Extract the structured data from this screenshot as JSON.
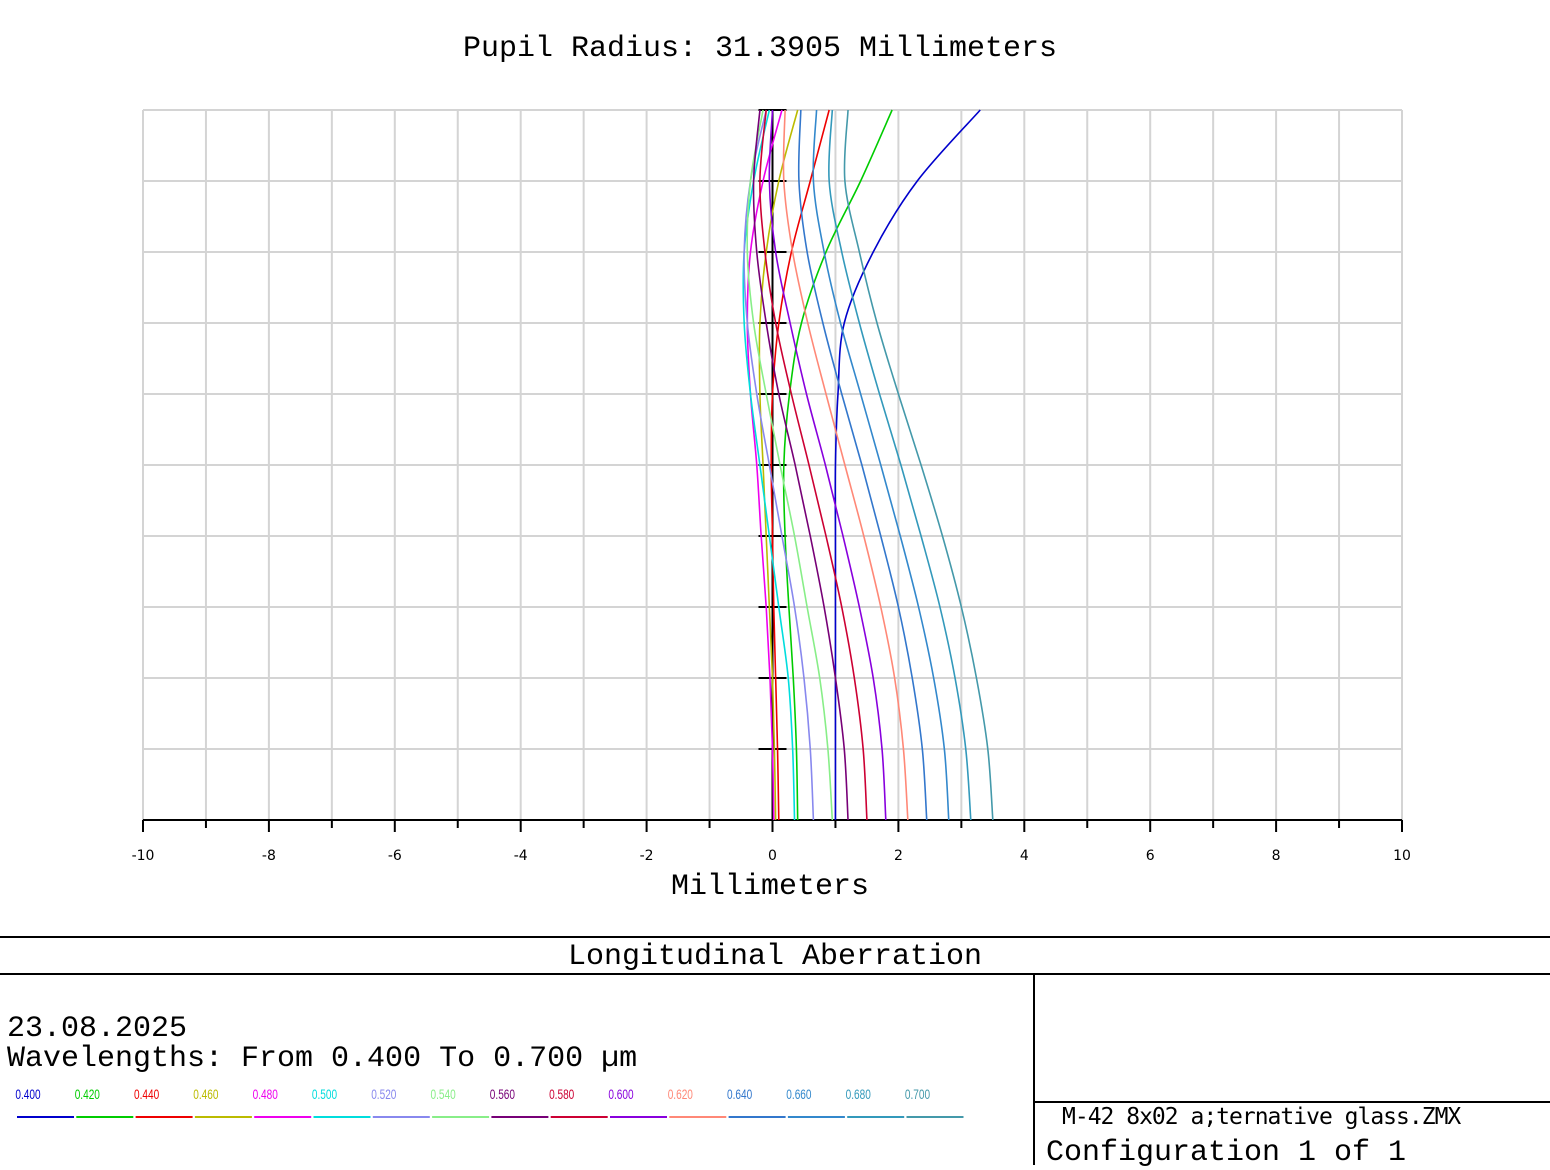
{
  "header": {
    "title": "Pupil Radius: 31.3905 Millimeters",
    "xlabel": "Millimeters"
  },
  "chart_data": {
    "type": "line",
    "title": "Pupil Radius: 31.3905 Millimeters",
    "xlabel": "Millimeters",
    "ylabel": "",
    "xlim": [
      -10,
      10
    ],
    "ylim": [
      0,
      1
    ],
    "x_ticks": [
      "-10",
      "-8",
      "-6",
      "-4",
      "-2",
      "0",
      "2",
      "4",
      "6",
      "8",
      "10"
    ],
    "grid": true,
    "y_pupil": [
      0,
      0.1,
      0.2,
      0.3,
      0.4,
      0.5,
      0.6,
      0.7,
      0.8,
      0.9,
      1.0
    ],
    "series": [
      {
        "name": "0.400",
        "color": "#0000cc",
        "x": [
          1.0,
          1.0,
          1.0,
          1.0,
          1.0,
          1.0,
          1.04,
          1.14,
          1.6,
          2.3,
          3.3
        ]
      },
      {
        "name": "0.420",
        "color": "#00cc00",
        "x": [
          0.4,
          0.38,
          0.33,
          0.26,
          0.2,
          0.18,
          0.27,
          0.46,
          0.85,
          1.4,
          1.9
        ]
      },
      {
        "name": "0.440",
        "color": "#ee0000",
        "x": [
          0.1,
          0.08,
          0.05,
          0.02,
          0.0,
          -0.02,
          0.0,
          0.1,
          0.3,
          0.6,
          0.9
        ]
      },
      {
        "name": "0.460",
        "color": "#bbbb00",
        "x": [
          0.05,
          0.03,
          0.0,
          -0.05,
          -0.1,
          -0.15,
          -0.2,
          -0.2,
          -0.1,
          0.1,
          0.4
        ]
      },
      {
        "name": "0.480",
        "color": "#ee00ee",
        "x": [
          0.02,
          0.0,
          -0.04,
          -0.1,
          -0.18,
          -0.25,
          -0.35,
          -0.4,
          -0.35,
          -0.15,
          0.15
        ]
      },
      {
        "name": "0.500",
        "color": "#00dddd",
        "x": [
          0.35,
          0.32,
          0.25,
          0.1,
          -0.05,
          -0.2,
          -0.35,
          -0.45,
          -0.45,
          -0.3,
          -0.05
        ]
      },
      {
        "name": "0.520",
        "color": "#8888ee",
        "x": [
          0.65,
          0.6,
          0.5,
          0.35,
          0.15,
          -0.05,
          -0.25,
          -0.4,
          -0.45,
          -0.35,
          -0.1
        ]
      },
      {
        "name": "0.540",
        "color": "#88ee88",
        "x": [
          0.95,
          0.88,
          0.75,
          0.55,
          0.35,
          0.12,
          -0.1,
          -0.3,
          -0.4,
          -0.35,
          -0.15
        ]
      },
      {
        "name": "0.560",
        "color": "#770077",
        "x": [
          1.2,
          1.14,
          1.0,
          0.82,
          0.6,
          0.36,
          0.1,
          -0.1,
          -0.25,
          -0.3,
          -0.2
        ]
      },
      {
        "name": "0.580",
        "color": "#cc0033",
        "x": [
          1.5,
          1.44,
          1.3,
          1.1,
          0.85,
          0.58,
          0.3,
          0.05,
          -0.12,
          -0.2,
          -0.1
        ]
      },
      {
        "name": "0.600",
        "color": "#8800dd",
        "x": [
          1.8,
          1.74,
          1.6,
          1.38,
          1.12,
          0.84,
          0.54,
          0.28,
          0.05,
          -0.05,
          0.0
        ]
      },
      {
        "name": "0.620",
        "color": "#ff8877",
        "x": [
          2.15,
          2.08,
          1.94,
          1.72,
          1.45,
          1.15,
          0.85,
          0.56,
          0.32,
          0.18,
          0.2
        ]
      },
      {
        "name": "0.640",
        "color": "#3377cc",
        "x": [
          2.45,
          2.38,
          2.22,
          2.0,
          1.72,
          1.42,
          1.1,
          0.8,
          0.55,
          0.42,
          0.45
        ]
      },
      {
        "name": "0.660",
        "color": "#3388cc",
        "x": [
          2.8,
          2.73,
          2.56,
          2.32,
          2.03,
          1.72,
          1.4,
          1.08,
          0.82,
          0.65,
          0.7
        ]
      },
      {
        "name": "0.680",
        "color": "#3399bb",
        "x": [
          3.15,
          3.07,
          2.9,
          2.66,
          2.36,
          2.04,
          1.7,
          1.38,
          1.1,
          0.9,
          0.95
        ]
      },
      {
        "name": "0.700",
        "color": "#4499aa",
        "x": [
          3.5,
          3.42,
          3.24,
          3.0,
          2.7,
          2.36,
          2.0,
          1.66,
          1.38,
          1.15,
          1.2
        ]
      }
    ]
  },
  "footer": {
    "plot_type": "Longitudinal Aberration",
    "date": "23.08.2025",
    "wavelengths": "Wavelengths: From 0.400 To 0.700 µm",
    "file": "M-42 8x02 a;ternative glass.ZMX",
    "config": "Configuration 1 of 1"
  }
}
